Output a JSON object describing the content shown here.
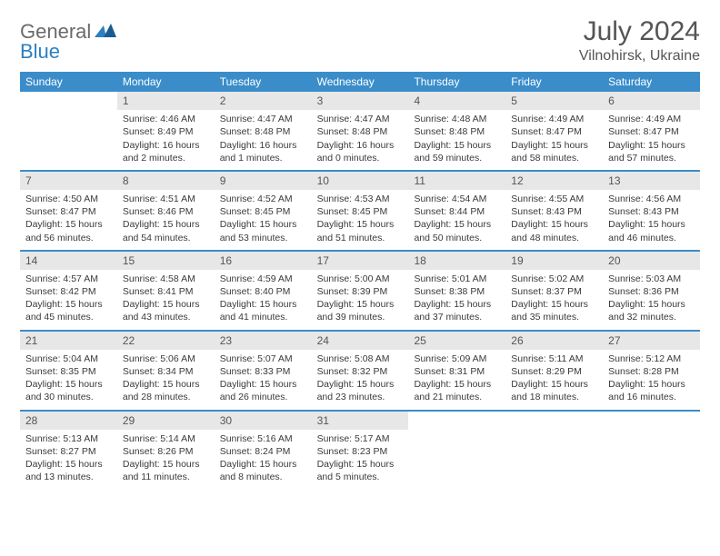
{
  "brand": {
    "word1": "General",
    "word2": "Blue"
  },
  "title": "July 2024",
  "location": "Vilnohirsk, Ukraine",
  "colors": {
    "header_blue": "#3b8dca",
    "daynum_bg": "#e7e7e7",
    "text_gray": "#555555",
    "body_text": "#3a3a3a"
  },
  "dow": [
    "Sunday",
    "Monday",
    "Tuesday",
    "Wednesday",
    "Thursday",
    "Friday",
    "Saturday"
  ],
  "weeks": [
    [
      null,
      {
        "n": "1",
        "sr": "4:46 AM",
        "ss": "8:49 PM",
        "dl": "16 hours and 2 minutes."
      },
      {
        "n": "2",
        "sr": "4:47 AM",
        "ss": "8:48 PM",
        "dl": "16 hours and 1 minutes."
      },
      {
        "n": "3",
        "sr": "4:47 AM",
        "ss": "8:48 PM",
        "dl": "16 hours and 0 minutes."
      },
      {
        "n": "4",
        "sr": "4:48 AM",
        "ss": "8:48 PM",
        "dl": "15 hours and 59 minutes."
      },
      {
        "n": "5",
        "sr": "4:49 AM",
        "ss": "8:47 PM",
        "dl": "15 hours and 58 minutes."
      },
      {
        "n": "6",
        "sr": "4:49 AM",
        "ss": "8:47 PM",
        "dl": "15 hours and 57 minutes."
      }
    ],
    [
      {
        "n": "7",
        "sr": "4:50 AM",
        "ss": "8:47 PM",
        "dl": "15 hours and 56 minutes."
      },
      {
        "n": "8",
        "sr": "4:51 AM",
        "ss": "8:46 PM",
        "dl": "15 hours and 54 minutes."
      },
      {
        "n": "9",
        "sr": "4:52 AM",
        "ss": "8:45 PM",
        "dl": "15 hours and 53 minutes."
      },
      {
        "n": "10",
        "sr": "4:53 AM",
        "ss": "8:45 PM",
        "dl": "15 hours and 51 minutes."
      },
      {
        "n": "11",
        "sr": "4:54 AM",
        "ss": "8:44 PM",
        "dl": "15 hours and 50 minutes."
      },
      {
        "n": "12",
        "sr": "4:55 AM",
        "ss": "8:43 PM",
        "dl": "15 hours and 48 minutes."
      },
      {
        "n": "13",
        "sr": "4:56 AM",
        "ss": "8:43 PM",
        "dl": "15 hours and 46 minutes."
      }
    ],
    [
      {
        "n": "14",
        "sr": "4:57 AM",
        "ss": "8:42 PM",
        "dl": "15 hours and 45 minutes."
      },
      {
        "n": "15",
        "sr": "4:58 AM",
        "ss": "8:41 PM",
        "dl": "15 hours and 43 minutes."
      },
      {
        "n": "16",
        "sr": "4:59 AM",
        "ss": "8:40 PM",
        "dl": "15 hours and 41 minutes."
      },
      {
        "n": "17",
        "sr": "5:00 AM",
        "ss": "8:39 PM",
        "dl": "15 hours and 39 minutes."
      },
      {
        "n": "18",
        "sr": "5:01 AM",
        "ss": "8:38 PM",
        "dl": "15 hours and 37 minutes."
      },
      {
        "n": "19",
        "sr": "5:02 AM",
        "ss": "8:37 PM",
        "dl": "15 hours and 35 minutes."
      },
      {
        "n": "20",
        "sr": "5:03 AM",
        "ss": "8:36 PM",
        "dl": "15 hours and 32 minutes."
      }
    ],
    [
      {
        "n": "21",
        "sr": "5:04 AM",
        "ss": "8:35 PM",
        "dl": "15 hours and 30 minutes."
      },
      {
        "n": "22",
        "sr": "5:06 AM",
        "ss": "8:34 PM",
        "dl": "15 hours and 28 minutes."
      },
      {
        "n": "23",
        "sr": "5:07 AM",
        "ss": "8:33 PM",
        "dl": "15 hours and 26 minutes."
      },
      {
        "n": "24",
        "sr": "5:08 AM",
        "ss": "8:32 PM",
        "dl": "15 hours and 23 minutes."
      },
      {
        "n": "25",
        "sr": "5:09 AM",
        "ss": "8:31 PM",
        "dl": "15 hours and 21 minutes."
      },
      {
        "n": "26",
        "sr": "5:11 AM",
        "ss": "8:29 PM",
        "dl": "15 hours and 18 minutes."
      },
      {
        "n": "27",
        "sr": "5:12 AM",
        "ss": "8:28 PM",
        "dl": "15 hours and 16 minutes."
      }
    ],
    [
      {
        "n": "28",
        "sr": "5:13 AM",
        "ss": "8:27 PM",
        "dl": "15 hours and 13 minutes."
      },
      {
        "n": "29",
        "sr": "5:14 AM",
        "ss": "8:26 PM",
        "dl": "15 hours and 11 minutes."
      },
      {
        "n": "30",
        "sr": "5:16 AM",
        "ss": "8:24 PM",
        "dl": "15 hours and 8 minutes."
      },
      {
        "n": "31",
        "sr": "5:17 AM",
        "ss": "8:23 PM",
        "dl": "15 hours and 5 minutes."
      },
      null,
      null,
      null
    ]
  ],
  "labels": {
    "sunrise": "Sunrise:",
    "sunset": "Sunset:",
    "daylight": "Daylight:"
  }
}
